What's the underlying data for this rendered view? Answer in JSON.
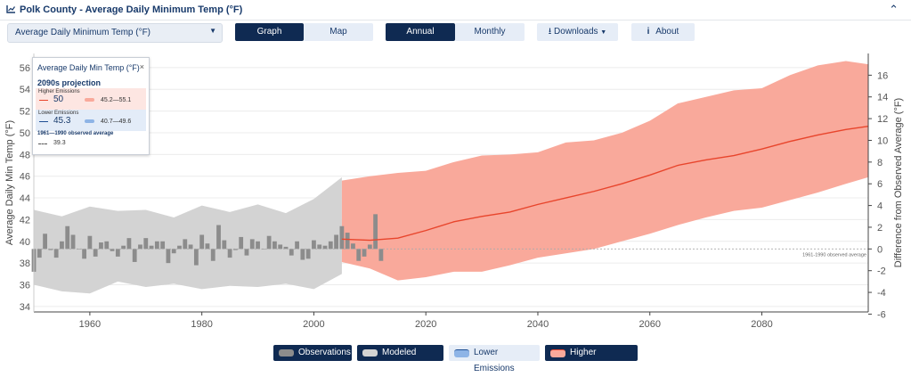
{
  "header": {
    "title": "Polk County - Average Daily Minimum Temp (°F)"
  },
  "toolbar": {
    "variable_select": "Average Daily Minimum Temp (°F)",
    "graph_label": "Graph",
    "map_label": "Map",
    "annual_label": "Annual",
    "monthly_label": "Monthly",
    "downloads_label": "Downloads",
    "about_label": "About"
  },
  "tooltip": {
    "title": "Average Daily Min Temp (°F)",
    "projection": "2090s projection",
    "higher_caption": "Higher Emissions",
    "higher_value": "50",
    "higher_range": "45.2—55.1",
    "lower_caption": "Lower Emissions",
    "lower_value": "45.3",
    "lower_range": "40.7—49.6",
    "observed_caption": "1961—1990 observed average",
    "observed_value": "39.3"
  },
  "legend": {
    "observations": "Observations",
    "modeled_history": "Modeled History",
    "lower_emissions": "Lower Emissions",
    "higher_emissions": "Higher Emissions"
  },
  "colors": {
    "observations": "#8c8c8c",
    "modeled_history": "#d3d3d3",
    "higher_band": "#f9a99b",
    "higher_line": "#e8452c",
    "lower_band": "#8eb4e6",
    "dark_button": "#0f2a52"
  },
  "chart_data": {
    "type": "bar",
    "ylabel": "Average Daily Min Temp (°F)",
    "y2label": "Difference from Observed Average (°F)",
    "ylim": [
      33.5,
      57.3
    ],
    "y_ticks": [
      34,
      36,
      38,
      40,
      42,
      44,
      46,
      48,
      50,
      52,
      54,
      56
    ],
    "y2_ticks": [
      -6,
      -4,
      -2,
      0,
      2,
      4,
      6,
      8,
      10,
      12,
      14,
      16
    ],
    "xlim": [
      1950,
      2099
    ],
    "x_ticks": [
      1960,
      1980,
      2000,
      2020,
      2040,
      2060,
      2080
    ],
    "baseline": 39.3,
    "baseline_label": "1961-1990 observed average",
    "observations": {
      "years": [
        1950,
        1951,
        1952,
        1953,
        1954,
        1955,
        1956,
        1957,
        1958,
        1959,
        1960,
        1961,
        1962,
        1963,
        1964,
        1965,
        1966,
        1967,
        1968,
        1969,
        1970,
        1971,
        1972,
        1973,
        1974,
        1975,
        1976,
        1977,
        1978,
        1979,
        1980,
        1981,
        1982,
        1983,
        1984,
        1985,
        1986,
        1987,
        1988,
        1989,
        1990,
        1991,
        1992,
        1993,
        1994,
        1995,
        1996,
        1997,
        1998,
        1999,
        2000,
        2001,
        2002,
        2003,
        2004,
        2005,
        2006,
        2007,
        2008,
        2009,
        2010,
        2011,
        2012
      ],
      "values": [
        37.2,
        38.5,
        40.7,
        39.2,
        38.5,
        40.0,
        41.4,
        40.6,
        39.3,
        38.4,
        40.5,
        38.6,
        39.9,
        40.0,
        39.1,
        38.6,
        39.6,
        40.3,
        38.1,
        39.7,
        40.3,
        39.6,
        40.0,
        40.0,
        38.0,
        38.9,
        39.6,
        40.2,
        39.7,
        37.8,
        40.6,
        39.8,
        38.2,
        41.5,
        40.1,
        38.5,
        39.2,
        40.4,
        38.7,
        40.2,
        40.0,
        39.3,
        40.5,
        40.0,
        39.7,
        39.5,
        38.7,
        40.0,
        38.3,
        38.4,
        40.1,
        39.7,
        39.6,
        40.0,
        40.6,
        41.4,
        40.8,
        39.8,
        38.2,
        38.6,
        39.7,
        42.5,
        38.2
      ]
    },
    "modeled_history": {
      "years": [
        1950,
        1955,
        1960,
        1965,
        1970,
        1975,
        1980,
        1985,
        1990,
        1995,
        2000,
        2005
      ],
      "low": [
        36.0,
        35.4,
        35.2,
        36.3,
        35.8,
        36.1,
        35.6,
        35.9,
        35.8,
        36.1,
        35.6,
        37.0
      ],
      "high": [
        42.9,
        42.3,
        43.2,
        42.8,
        42.9,
        42.2,
        43.3,
        42.7,
        43.4,
        42.6,
        43.9,
        45.9
      ]
    },
    "higher_emissions": {
      "years": [
        2005,
        2010,
        2015,
        2020,
        2025,
        2030,
        2035,
        2040,
        2045,
        2050,
        2055,
        2060,
        2065,
        2070,
        2075,
        2080,
        2085,
        2090,
        2095,
        2099
      ],
      "mean": [
        40.2,
        40.1,
        40.3,
        41.0,
        41.8,
        42.3,
        42.7,
        43.4,
        44.0,
        44.6,
        45.3,
        46.1,
        47.0,
        47.5,
        47.9,
        48.5,
        49.2,
        49.8,
        50.3,
        50.6
      ],
      "low": [
        38.1,
        37.5,
        36.4,
        36.7,
        37.2,
        37.2,
        37.8,
        38.5,
        38.9,
        39.3,
        40.0,
        40.7,
        41.5,
        42.2,
        42.8,
        43.1,
        43.8,
        44.5,
        45.3,
        45.9
      ],
      "high": [
        45.6,
        46.0,
        46.3,
        46.5,
        47.3,
        47.9,
        48.0,
        48.2,
        49.1,
        49.3,
        50.0,
        51.1,
        52.7,
        53.3,
        53.9,
        54.1,
        55.3,
        56.2,
        56.6,
        56.3
      ]
    }
  }
}
